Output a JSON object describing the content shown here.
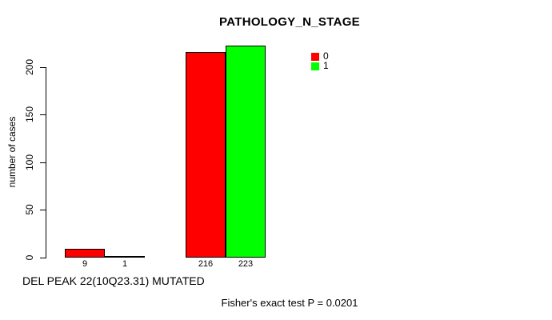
{
  "figure": {
    "title": "PATHOLOGY_N_STAGE",
    "ylabel": "number of cases",
    "xlabel": "DEL PEAK 22(10Q23.31) MUTATED",
    "annotation": "Fisher's exact test P = 0.0201"
  },
  "legend": {
    "items": [
      {
        "label": "0",
        "color": "#FF0000"
      },
      {
        "label": "1",
        "color": "#00FF00"
      }
    ]
  },
  "chart_data": {
    "type": "bar",
    "title": "PATHOLOGY_N_STAGE",
    "xlabel": "DEL PEAK 22(10Q23.31) MUTATED",
    "ylabel": "number of cases",
    "categories": [
      "",
      ""
    ],
    "series": [
      {
        "name": "0",
        "color": "#FF0000",
        "values": [
          9,
          216
        ]
      },
      {
        "name": "1",
        "color": "#00FF00",
        "values": [
          1,
          223
        ]
      }
    ],
    "bar_value_labels": [
      [
        "9",
        "216"
      ],
      [
        "1",
        "223"
      ]
    ],
    "yticks": [
      0,
      50,
      100,
      150,
      200
    ],
    "ylim": [
      0,
      235
    ],
    "grid": false,
    "legend_position": "top-right",
    "annotation": "Fisher's exact test P = 0.0201"
  }
}
